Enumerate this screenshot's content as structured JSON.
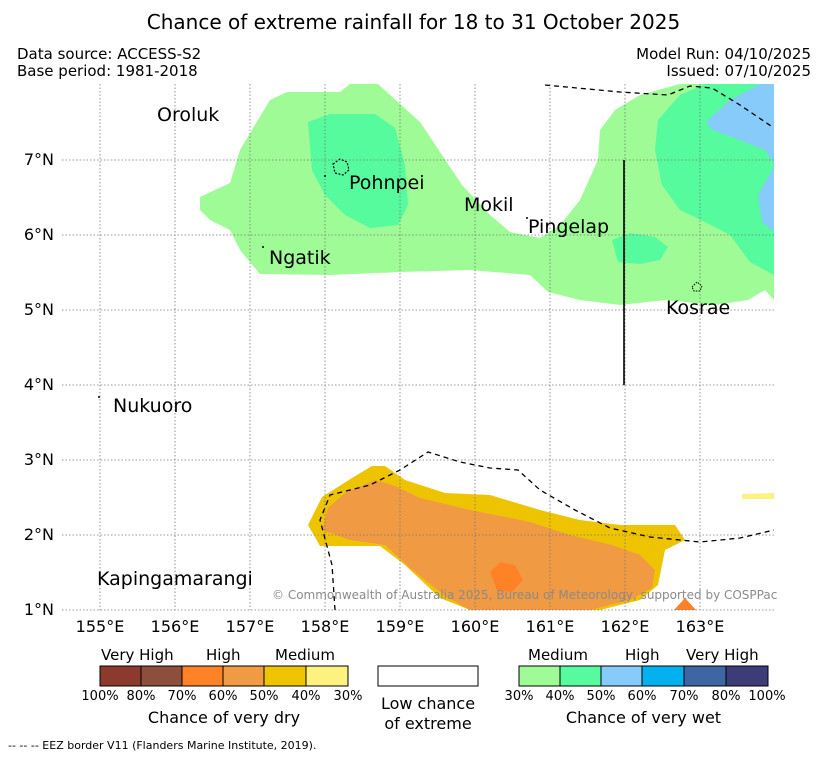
{
  "title": "Chance of extreme rainfall for 18 to 31 October 2025",
  "header": {
    "data_source": "Data source: ACCESS-S2",
    "base_period": "Base period: 1981-2018",
    "model_run": "Model Run: 04/10/2025",
    "issued": "Issued: 07/10/2025"
  },
  "places": {
    "oroluk": "Oroluk",
    "pohnpei": "Pohnpei",
    "mokil": "Mokil",
    "pingelap": "Pingelap",
    "ngatik": "Ngatik",
    "kosrae": "Kosrae",
    "nukuoro": "Nukuoro",
    "kapingamarangi": "Kapingamarangi"
  },
  "axes": {
    "lat_labels": [
      "7°N",
      "6°N",
      "5°N",
      "4°N",
      "3°N",
      "2°N",
      "1°N"
    ],
    "lon_labels": [
      "155°E",
      "156°E",
      "157°E",
      "158°E",
      "159°E",
      "160°E",
      "161°E",
      "162°E",
      "163°E"
    ],
    "grid": true
  },
  "copyright": "© Commonwealth of Australia 2025, Bureau of Meteorology, supported by COSPPac",
  "legend": {
    "dry": {
      "categories": [
        "Very High",
        "High",
        "Medium"
      ],
      "percents": [
        "100%",
        "80%",
        "70%",
        "60%",
        "50%",
        "40%",
        "30%"
      ],
      "colors": [
        "#8c3a2e",
        "#8c4f3c",
        "#ff8226",
        "#f09a44",
        "#eec400",
        "#fdf280"
      ],
      "caption": "Chance of very dry"
    },
    "low": {
      "caption_line1": "Low chance",
      "caption_line2": "of extreme"
    },
    "wet": {
      "categories": [
        "Medium",
        "High",
        "Very High"
      ],
      "percents": [
        "30%",
        "40%",
        "50%",
        "60%",
        "70%",
        "80%",
        "100%"
      ],
      "colors": [
        "#9efb96",
        "#56fb9e",
        "#86cbfa",
        "#03b1ef",
        "#3e66a3",
        "#3e3c78"
      ],
      "caption": "Chance of very wet"
    }
  },
  "eez_note": "-- -- -- EEZ border V11 (Flanders Marine Institute, 2019)."
}
